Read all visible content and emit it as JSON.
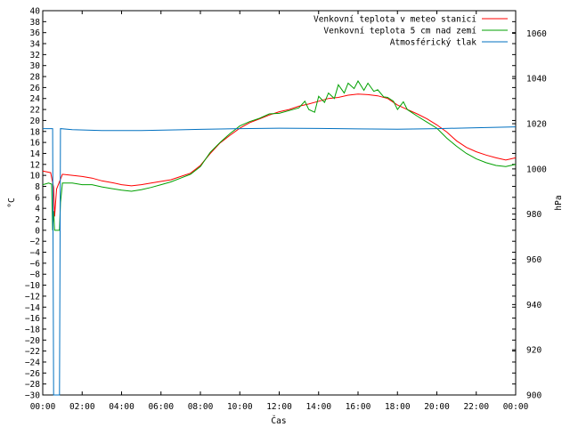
{
  "chart_data": {
    "type": "line",
    "xlabel": "Čas",
    "ylabel_left": "°C",
    "ylabel_right": "hPa",
    "ylim_left": [
      -30,
      40
    ],
    "ylim_right": [
      900,
      1070
    ],
    "xlim_hours": [
      0,
      24
    ],
    "x_ticks": [
      "00:00",
      "02:00",
      "04:00",
      "06:00",
      "08:00",
      "10:00",
      "12:00",
      "14:00",
      "16:00",
      "18:00",
      "20:00",
      "22:00",
      "00:00"
    ],
    "y_ticks_left": [
      -30,
      -28,
      -26,
      -24,
      -22,
      -20,
      -18,
      -16,
      -14,
      -12,
      -10,
      -8,
      -6,
      -4,
      -2,
      0,
      2,
      4,
      6,
      8,
      10,
      12,
      14,
      16,
      18,
      20,
      22,
      24,
      26,
      28,
      30,
      32,
      34,
      36,
      38,
      40
    ],
    "y_ticks_right": [
      900,
      920,
      940,
      960,
      980,
      1000,
      1020,
      1040,
      1060
    ],
    "grid": false,
    "legend_position": "top-right",
    "series": [
      {
        "name": "Venkovní teplota v meteo stanici",
        "axis": "left",
        "color": "#ff0000",
        "points": [
          [
            0,
            10.8
          ],
          [
            0.4,
            10.5
          ],
          [
            0.55,
            7.8
          ],
          [
            0.6,
            2.5
          ],
          [
            0.7,
            7.5
          ],
          [
            1.0,
            10.2
          ],
          [
            1.5,
            10.0
          ],
          [
            2.0,
            9.8
          ],
          [
            2.5,
            9.5
          ],
          [
            3.0,
            9.0
          ],
          [
            3.5,
            8.7
          ],
          [
            4.0,
            8.3
          ],
          [
            4.5,
            8.1
          ],
          [
            5.0,
            8.3
          ],
          [
            5.5,
            8.6
          ],
          [
            6.0,
            8.9
          ],
          [
            6.5,
            9.2
          ],
          [
            7.0,
            9.8
          ],
          [
            7.5,
            10.4
          ],
          [
            8.0,
            11.8
          ],
          [
            8.5,
            14.0
          ],
          [
            9.0,
            15.9
          ],
          [
            9.5,
            17.3
          ],
          [
            10.0,
            18.6
          ],
          [
            10.5,
            19.6
          ],
          [
            11.0,
            20.3
          ],
          [
            11.5,
            21.0
          ],
          [
            12.0,
            21.6
          ],
          [
            12.5,
            22.0
          ],
          [
            13.0,
            22.6
          ],
          [
            13.5,
            23.0
          ],
          [
            14.0,
            23.5
          ],
          [
            14.5,
            24.0
          ],
          [
            15.0,
            24.2
          ],
          [
            15.5,
            24.6
          ],
          [
            16.0,
            24.8
          ],
          [
            16.5,
            24.7
          ],
          [
            17.0,
            24.5
          ],
          [
            17.5,
            24.0
          ],
          [
            18.0,
            22.8
          ],
          [
            18.5,
            22.0
          ],
          [
            19.0,
            21.2
          ],
          [
            19.5,
            20.3
          ],
          [
            20.0,
            19.2
          ],
          [
            20.5,
            17.9
          ],
          [
            21.0,
            16.3
          ],
          [
            21.5,
            15.1
          ],
          [
            22.0,
            14.3
          ],
          [
            22.5,
            13.7
          ],
          [
            23.0,
            13.2
          ],
          [
            23.5,
            12.8
          ],
          [
            24.0,
            13.2
          ]
        ]
      },
      {
        "name": "Venkovní teplota 5 cm nad zemí",
        "axis": "left",
        "color": "#00a000",
        "points": [
          [
            0,
            8.3
          ],
          [
            0.3,
            8.6
          ],
          [
            0.45,
            8.4
          ],
          [
            0.5,
            0
          ],
          [
            0.55,
            3.5
          ],
          [
            0.6,
            0
          ],
          [
            0.85,
            0
          ],
          [
            0.9,
            5
          ],
          [
            1.0,
            8.6
          ],
          [
            1.5,
            8.6
          ],
          [
            2.0,
            8.3
          ],
          [
            2.5,
            8.3
          ],
          [
            3.0,
            7.9
          ],
          [
            3.5,
            7.6
          ],
          [
            4.0,
            7.3
          ],
          [
            4.5,
            7.1
          ],
          [
            5.0,
            7.4
          ],
          [
            5.5,
            7.8
          ],
          [
            6.0,
            8.3
          ],
          [
            6.5,
            8.8
          ],
          [
            7.0,
            9.5
          ],
          [
            7.5,
            10.2
          ],
          [
            8.0,
            11.6
          ],
          [
            8.5,
            14.2
          ],
          [
            9.0,
            16.0
          ],
          [
            9.5,
            17.6
          ],
          [
            10.0,
            19.0
          ],
          [
            10.5,
            19.8
          ],
          [
            11.0,
            20.4
          ],
          [
            11.5,
            21.2
          ],
          [
            12.0,
            21.3
          ],
          [
            12.5,
            21.8
          ],
          [
            13.0,
            22.3
          ],
          [
            13.3,
            23.5
          ],
          [
            13.5,
            22.0
          ],
          [
            13.8,
            21.5
          ],
          [
            14.0,
            24.4
          ],
          [
            14.3,
            23.3
          ],
          [
            14.5,
            25.0
          ],
          [
            14.8,
            24.0
          ],
          [
            15.0,
            26.5
          ],
          [
            15.3,
            25.0
          ],
          [
            15.5,
            26.8
          ],
          [
            15.8,
            25.8
          ],
          [
            16.0,
            27.2
          ],
          [
            16.3,
            25.5
          ],
          [
            16.5,
            26.8
          ],
          [
            16.8,
            25.3
          ],
          [
            17.0,
            25.6
          ],
          [
            17.3,
            24.3
          ],
          [
            17.5,
            24.2
          ],
          [
            17.8,
            23.5
          ],
          [
            18.0,
            22.0
          ],
          [
            18.3,
            23.4
          ],
          [
            18.5,
            22.0
          ],
          [
            19.0,
            20.8
          ],
          [
            19.5,
            19.7
          ],
          [
            20.0,
            18.6
          ],
          [
            20.5,
            16.8
          ],
          [
            21.0,
            15.3
          ],
          [
            21.5,
            14.0
          ],
          [
            22.0,
            13.0
          ],
          [
            22.5,
            12.3
          ],
          [
            23.0,
            11.8
          ],
          [
            23.5,
            11.6
          ],
          [
            24.0,
            12.0
          ]
        ]
      },
      {
        "name": "Atmosférický tlak",
        "axis": "right",
        "color": "#0070c0",
        "points": [
          [
            0,
            1017.8
          ],
          [
            0.5,
            1017.8
          ],
          [
            0.55,
            900
          ],
          [
            0.85,
            900
          ],
          [
            0.9,
            1017.8
          ],
          [
            1.5,
            1017.4
          ],
          [
            3.0,
            1017.0
          ],
          [
            5.0,
            1017.0
          ],
          [
            7.0,
            1017.3
          ],
          [
            8.0,
            1017.5
          ],
          [
            10.0,
            1017.8
          ],
          [
            12.0,
            1018.0
          ],
          [
            14.0,
            1017.9
          ],
          [
            16.0,
            1017.7
          ],
          [
            18.0,
            1017.6
          ],
          [
            20.0,
            1017.8
          ],
          [
            22.0,
            1018.2
          ],
          [
            24.0,
            1018.6
          ]
        ]
      }
    ]
  }
}
